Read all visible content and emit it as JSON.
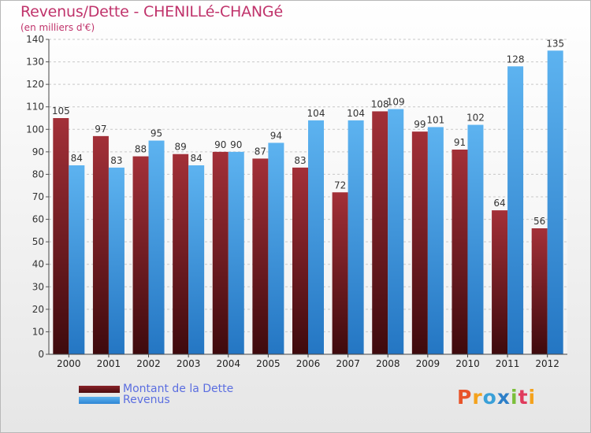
{
  "chart_data": {
    "type": "bar",
    "title": "Revenus/Dette - CHENILLé-CHANGé",
    "subtitle": "(en milliers d'€)",
    "categories": [
      "2000",
      "2001",
      "2002",
      "2003",
      "2004",
      "2005",
      "2006",
      "2007",
      "2008",
      "2009",
      "2010",
      "2011",
      "2012"
    ],
    "series": [
      {
        "name": "Montant de la Dette",
        "color": "#7a1f24",
        "values": [
          105,
          97,
          88,
          89,
          90,
          87,
          83,
          72,
          108,
          99,
          91,
          64,
          56
        ]
      },
      {
        "name": "Revenus",
        "color": "#4aa3e6",
        "values": [
          84,
          83,
          95,
          84,
          90,
          94,
          104,
          104,
          109,
          101,
          102,
          128,
          135
        ]
      }
    ],
    "ylim": [
      0,
      140
    ],
    "yticks": [
      0,
      10,
      20,
      30,
      40,
      50,
      60,
      70,
      80,
      90,
      100,
      110,
      120,
      130,
      140
    ],
    "grid": true,
    "legend": "bottom-left"
  },
  "logo_text": "Proxiti"
}
